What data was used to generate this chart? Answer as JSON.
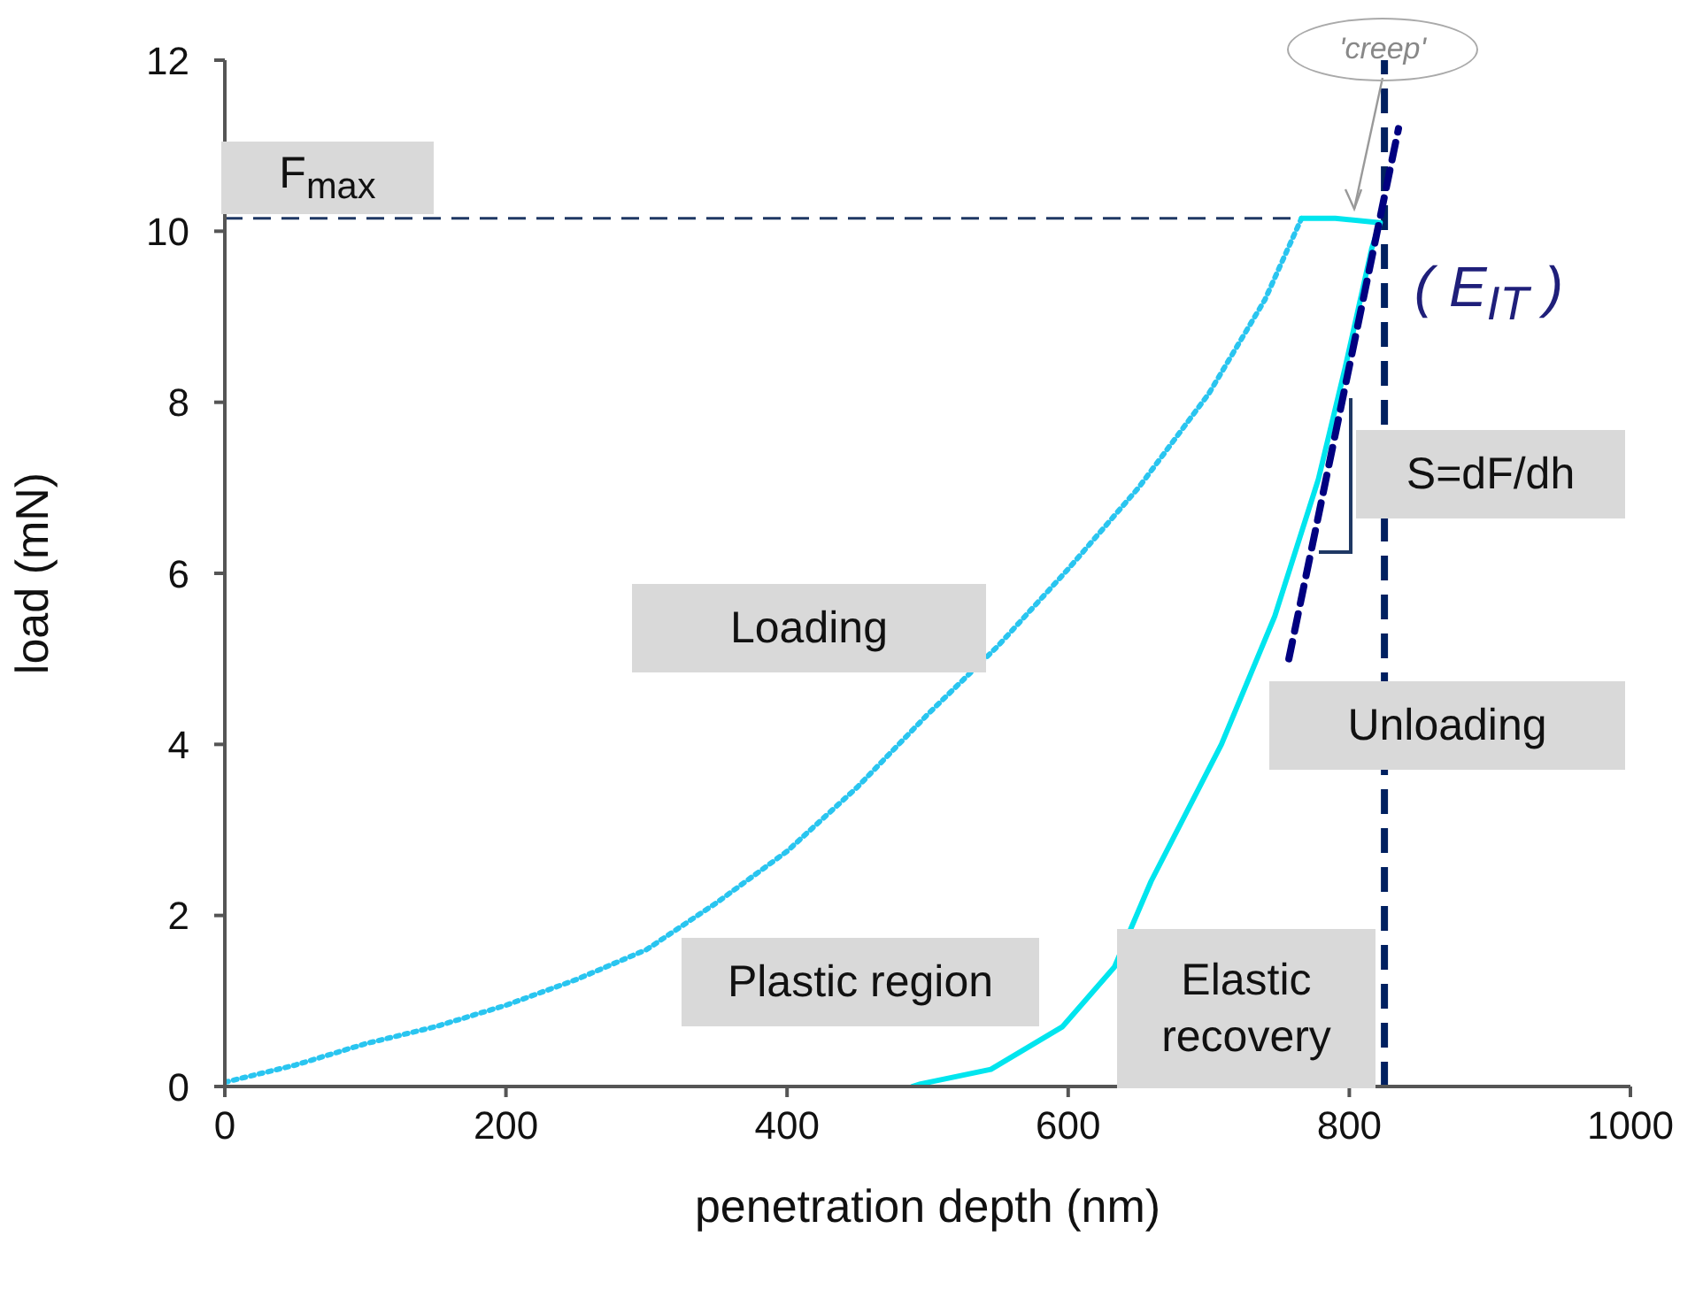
{
  "chart_data": {
    "type": "line",
    "xlabel": "penetration depth  (nm)",
    "ylabel": "load  (mN)",
    "xlim": [
      0,
      1000
    ],
    "xticks": [
      0,
      200,
      400,
      600,
      800,
      1000
    ],
    "ylim": [
      0,
      12
    ],
    "yticks": [
      0,
      2,
      4,
      6,
      8,
      10,
      12
    ],
    "marker": "none",
    "series": [
      {
        "color": "#29c5f0",
        "line_style": "dotted",
        "x": [
          0,
          50,
          100,
          150,
          200,
          250,
          300,
          350,
          400,
          450,
          500,
          550,
          600,
          650,
          700,
          740,
          766
        ],
        "values": [
          0.05,
          0.25,
          0.5,
          0.7,
          0.95,
          1.25,
          1.6,
          2.15,
          2.75,
          3.5,
          4.35,
          5.15,
          6.05,
          7.0,
          8.1,
          9.2,
          10.15
        ]
      },
      {
        "color": "#00e5ee",
        "line_style": "solid",
        "x": [
          766,
          790,
          822,
          816,
          797,
          778,
          747,
          709,
          659,
          633,
          596,
          545,
          495,
          489
        ],
        "values": [
          10.15,
          10.15,
          10.1,
          9.8,
          8.4,
          7.1,
          5.5,
          4.0,
          2.4,
          1.4,
          0.7,
          0.2,
          0.03,
          0.0
        ]
      },
      {
        "color": "#000080",
        "line_style": "dashed",
        "x": [
          757,
          835
        ],
        "values": [
          5.0,
          11.2
        ]
      }
    ],
    "ref_lines": [
      {
        "axis": "y",
        "value": 10.15,
        "label": "F$_{max}$",
        "color": "#1f3864",
        "line_style": "dashed"
      },
      {
        "axis": "x",
        "value": 825,
        "color": "#002060",
        "line_style": "dashed"
      }
    ],
    "annotations": [
      "Loading",
      "Plastic region",
      "Elastic recovery",
      "Unloading",
      "S=dF/dh",
      "( E$_{IT}$ )",
      "'creep'"
    ]
  }
}
